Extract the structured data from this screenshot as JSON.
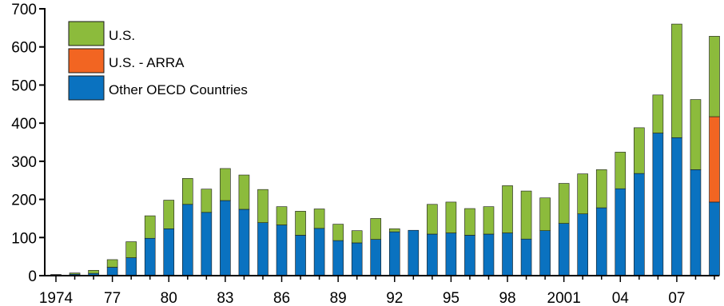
{
  "chart_data": {
    "type": "bar",
    "stacked": true,
    "title": "",
    "xlabel": "",
    "ylabel": "",
    "ylim": [
      0,
      700
    ],
    "yticks": [
      0,
      100,
      200,
      300,
      400,
      500,
      600,
      700
    ],
    "grid": false,
    "legend_position": "top-left",
    "categories": [
      "1974",
      "1975",
      "1976",
      "1977",
      "1978",
      "1979",
      "1980",
      "1981",
      "1982",
      "1983",
      "1984",
      "1985",
      "1986",
      "1987",
      "1988",
      "1989",
      "1990",
      "1991",
      "1992",
      "1993",
      "1994",
      "1995",
      "1996",
      "1997",
      "1998",
      "1999",
      "2000",
      "2001",
      "2002",
      "2003",
      "2004",
      "2005",
      "2006",
      "2007",
      "2008",
      "2009"
    ],
    "xtick_labels": [
      {
        "category": "1974",
        "label": "1974"
      },
      {
        "category": "1977",
        "label": "77"
      },
      {
        "category": "1980",
        "label": "80"
      },
      {
        "category": "1983",
        "label": "83"
      },
      {
        "category": "1986",
        "label": "86"
      },
      {
        "category": "1989",
        "label": "89"
      },
      {
        "category": "1992",
        "label": "92"
      },
      {
        "category": "1995",
        "label": "95"
      },
      {
        "category": "1998",
        "label": "98"
      },
      {
        "category": "2001",
        "label": "2001"
      },
      {
        "category": "2004",
        "label": "04"
      },
      {
        "category": "2007",
        "label": "07"
      }
    ],
    "series": [
      {
        "name": "Other OECD Countries",
        "color": "#0a72c0",
        "values": [
          2,
          4,
          6,
          22,
          47,
          98,
          123,
          187,
          166,
          197,
          174,
          139,
          133,
          106,
          124,
          92,
          86,
          95,
          115,
          119,
          109,
          112,
          106,
          109,
          112,
          96,
          118,
          137,
          162,
          178,
          228,
          268,
          374,
          362,
          278,
          193
        ]
      },
      {
        "name": "U.S. - ARRA",
        "color": "#f26522",
        "values": [
          0,
          0,
          0,
          0,
          0,
          0,
          0,
          0,
          0,
          0,
          0,
          0,
          0,
          0,
          0,
          0,
          0,
          0,
          0,
          0,
          0,
          0,
          0,
          0,
          0,
          0,
          0,
          0,
          0,
          0,
          0,
          0,
          0,
          0,
          0,
          224
        ]
      },
      {
        "name": "U.S.",
        "color": "#8cbb3c",
        "values": [
          1,
          3,
          8,
          20,
          42,
          59,
          75,
          68,
          61,
          84,
          90,
          87,
          48,
          63,
          51,
          43,
          32,
          55,
          8,
          0,
          78,
          81,
          70,
          72,
          124,
          126,
          86,
          105,
          105,
          100,
          96,
          120,
          100,
          298,
          184,
          211
        ]
      }
    ],
    "legend_order": [
      "U.S.",
      "U.S. - ARRA",
      "Other OECD Countries"
    ]
  }
}
